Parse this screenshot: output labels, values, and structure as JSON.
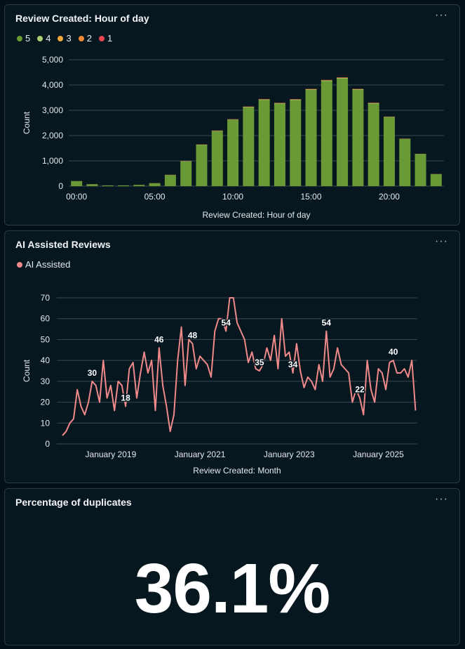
{
  "cards": [
    {
      "title": "Review Created: Hour of day",
      "menu": "···"
    },
    {
      "title": "AI Assisted Reviews",
      "menu": "···"
    },
    {
      "title": "Percentage of duplicates",
      "menu": "···",
      "value": "36.1%"
    }
  ],
  "chart_data": [
    {
      "type": "bar",
      "stacked": true,
      "xlabel": "Review Created: Hour of day",
      "ylabel": "Count",
      "ylim": [
        0,
        5000
      ],
      "yticks": [
        "0",
        "1,000",
        "2,000",
        "3,000",
        "4,000",
        "5,000"
      ],
      "xtick_labels": [
        "00:00",
        "05:00",
        "10:00",
        "15:00",
        "20:00"
      ],
      "categories": [
        0,
        1,
        2,
        3,
        4,
        5,
        6,
        7,
        8,
        9,
        10,
        11,
        12,
        13,
        14,
        15,
        16,
        17,
        18,
        19,
        20,
        21,
        22,
        23
      ],
      "legend_placement": "top-left",
      "grid": true,
      "series": [
        {
          "name": "5",
          "color": "#6a9a35",
          "values": [
            195,
            75,
            28,
            28,
            48,
            115,
            440,
            980,
            1625,
            2170,
            2620,
            3110,
            3405,
            3255,
            3400,
            3800,
            4150,
            4250,
            3805,
            3260,
            2720,
            1860,
            1265,
            470
          ]
        },
        {
          "name": "4",
          "color": "#a8d070",
          "values": [
            3,
            2,
            1,
            1,
            1,
            2,
            5,
            10,
            12,
            15,
            15,
            18,
            20,
            20,
            22,
            24,
            26,
            25,
            22,
            20,
            15,
            10,
            8,
            5
          ]
        },
        {
          "name": "3",
          "color": "#f2a93b",
          "values": [
            1,
            1,
            0,
            0,
            0,
            1,
            2,
            4,
            5,
            6,
            6,
            7,
            8,
            8,
            8,
            9,
            10,
            10,
            9,
            8,
            6,
            4,
            3,
            2
          ]
        },
        {
          "name": "2",
          "color": "#f08838",
          "values": [
            1,
            1,
            0,
            0,
            0,
            1,
            2,
            3,
            4,
            5,
            5,
            6,
            6,
            6,
            6,
            7,
            7,
            7,
            6,
            6,
            5,
            3,
            2,
            1
          ]
        },
        {
          "name": "1",
          "color": "#e5484d",
          "values": [
            1,
            1,
            1,
            1,
            1,
            1,
            2,
            4,
            5,
            6,
            6,
            7,
            8,
            8,
            8,
            9,
            9,
            9,
            8,
            7,
            5,
            3,
            2,
            2
          ]
        }
      ]
    },
    {
      "type": "line",
      "xlabel": "Review Created: Month",
      "ylabel": "Count",
      "ylim": [
        0,
        70
      ],
      "yticks": [
        "0",
        "10",
        "20",
        "30",
        "40",
        "50",
        "60",
        "70"
      ],
      "xtick_labels": [
        "January 2019",
        "January 2021",
        "January 2023",
        "January 2025"
      ],
      "xtick_months": [
        "2019-01",
        "2021-01",
        "2023-01",
        "2025-01"
      ],
      "x_start": "2017-12",
      "legend_placement": "top-left",
      "grid": true,
      "series": [
        {
          "name": "AI Assisted",
          "color": "#f08a8a",
          "values": [
            4,
            6,
            10,
            12,
            26,
            18,
            14,
            20,
            30,
            28,
            20,
            40,
            22,
            28,
            16,
            30,
            28,
            18,
            36,
            39,
            22,
            34,
            44,
            34,
            40,
            16,
            46,
            28,
            18,
            6,
            14,
            40,
            56,
            28,
            50,
            48,
            36,
            42,
            40,
            38,
            32,
            54,
            60,
            60,
            54,
            70,
            70,
            58,
            54,
            50,
            39,
            44,
            36,
            35,
            38,
            46,
            40,
            52,
            36,
            60,
            42,
            44,
            34,
            48,
            35,
            27,
            32,
            30,
            26,
            38,
            30,
            54,
            32,
            36,
            46,
            38,
            36,
            34,
            20,
            26,
            22,
            14,
            40,
            26,
            20,
            36,
            34,
            26,
            39,
            40,
            34,
            34,
            36,
            32,
            40,
            16
          ]
        }
      ],
      "data_labels": [
        {
          "month": "2018-08",
          "label": "30"
        },
        {
          "month": "2019-05",
          "label": "18"
        },
        {
          "month": "2020-02",
          "label": "46"
        },
        {
          "month": "2020-11",
          "label": "48"
        },
        {
          "month": "2021-08",
          "label": "54"
        },
        {
          "month": "2022-05",
          "label": "35"
        },
        {
          "month": "2023-02",
          "label": "34"
        },
        {
          "month": "2023-11",
          "label": "54"
        },
        {
          "month": "2024-08",
          "label": "22"
        },
        {
          "month": "2025-05",
          "label": "40"
        }
      ]
    }
  ]
}
